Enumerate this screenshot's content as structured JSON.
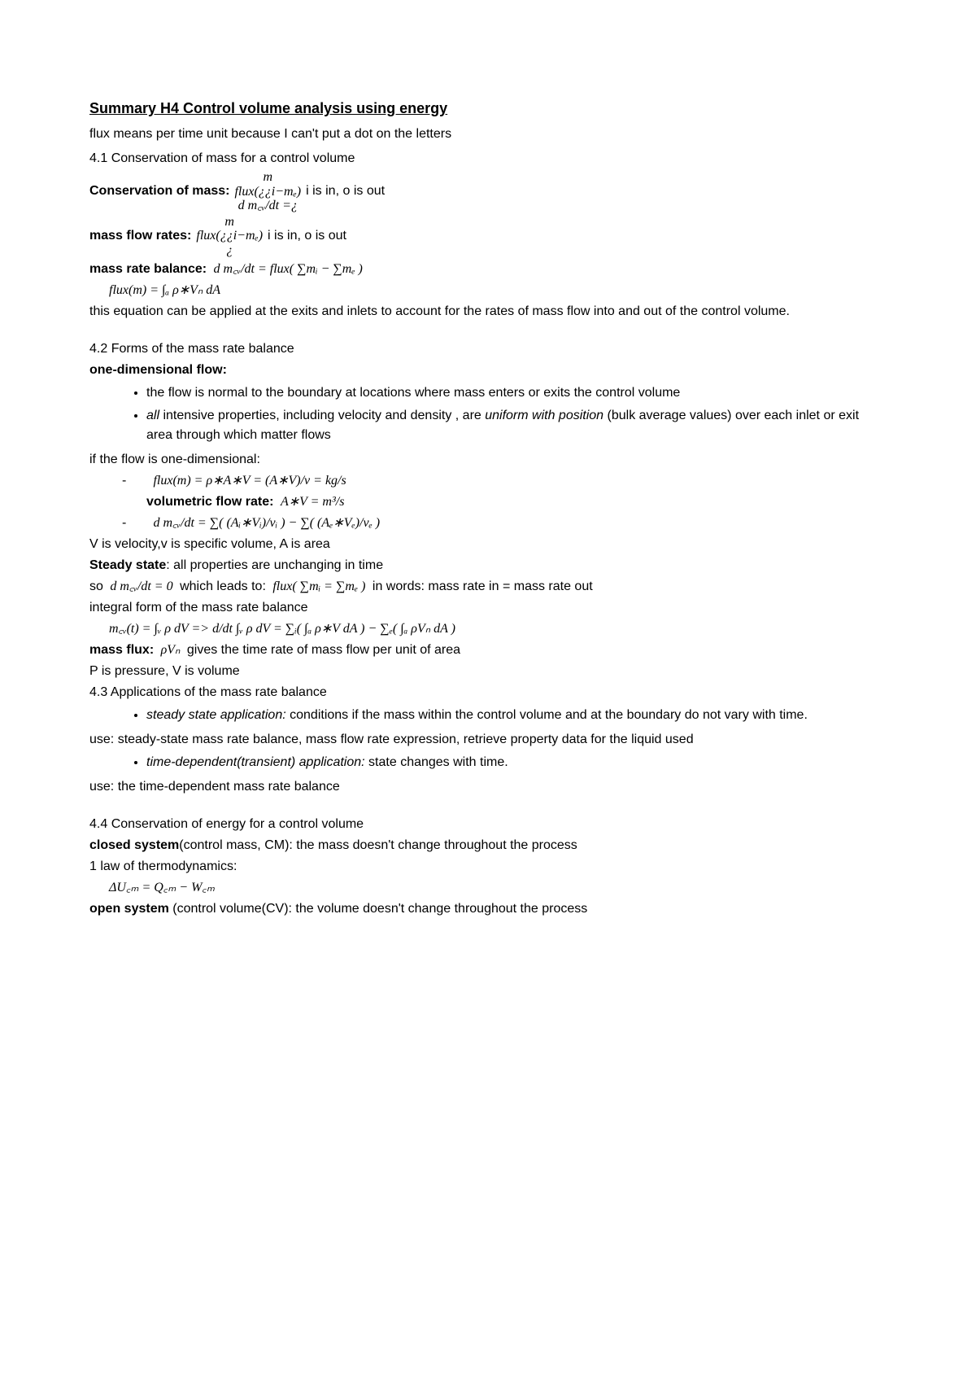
{
  "title": "Summary H4 Control volume analysis using energy",
  "subtitle": "flux means per time unit because I can't put a dot on the letters",
  "sections": {
    "s41": {
      "heading": "4.1 Conservation of mass for a control volume",
      "consLabel": "Conservation of mass:",
      "consNote": "i is in, o is out",
      "consStack": {
        "top": "m",
        "mid": "flux(¿¿i−mₑ)",
        "bot": "d m꜀ᵥ/dt =¿"
      },
      "massFlowLabel": "mass flow rates:",
      "massFlowNote": "i is in, o is out",
      "massFlowStack": {
        "top": "m",
        "mid": "flux(¿¿i−mₑ)",
        "bot": "¿"
      },
      "massRateLabel": "mass rate balance:",
      "massRateFormula": "d m꜀ᵥ/dt = flux( ∑mᵢ − ∑mₑ )",
      "fluxIntegral": "flux(m) = ∫ₐ ρ∗Vₙ dA",
      "note1": "this equation can be applied at the exits and inlets to account for the rates of mass flow into and out of the control volume."
    },
    "s42": {
      "heading": "4.2 Forms of the mass rate balance",
      "oneDimLabel": "one-dimensional flow:",
      "bullet1": "the flow is normal to the boundary at locations where mass enters or exits the control volume",
      "bullet2a": "all",
      "bullet2b": " intensive properties, including velocity and density , are ",
      "bullet2c": "uniform with position",
      "bullet2d": " (bulk average values) over each inlet or exit area through which matter flows",
      "ifOneDim": "if the flow is one-dimensional:",
      "dash1": "flux(m) = ρ∗A∗V = (A∗V)/v = kg/s",
      "volFlowLabel": "volumetric flow rate:",
      "volFlowFormula": "A∗V = m³/s",
      "dash2": "d m꜀ᵥ/dt = ∑( (Aᵢ∗Vᵢ)/vᵢ ) − ∑( (Aₑ∗Vₑ)/vₑ )",
      "vNote": "V is velocity,v is specific volume, A is area",
      "steadyLabel": "Steady state",
      "steadyDef": ": all properties are unchanging in time",
      "soLine1": "so   ",
      "soFormula1": "d m꜀ᵥ/dt = 0",
      "soLine2": "   which leads to:   ",
      "soFormula2": "flux( ∑mᵢ = ∑mₑ )",
      "soLine3": "   in words: mass rate in = mass rate out",
      "integralHeading": "integral form of the mass rate balance",
      "integralFormula": "m꜀ᵥ(t) = ∫ᵥ ρ dV    =>   d/dt    ∫ᵥ ρ dV = ∑ᵢ( ∫ₐ ρ∗V dA ) − ∑ₑ( ∫ₐ ρVₙ dA )",
      "massFluxLabel": "mass flux:",
      "massFluxFormula": "ρVₙ",
      "massFluxDef": "  gives the time rate of mass flow per unit of area",
      "pvNote": "P is pressure, V is volume"
    },
    "s43": {
      "heading": "4.3 Applications of the mass rate balance",
      "bullet1a": "steady state application:",
      "bullet1b": " conditions if the mass within the control volume and at the boundary do not vary with time.",
      "use1": "use: steady-state mass rate balance, mass flow rate expression, retrieve property data for the liquid used",
      "bullet2a": "time-dependent(transient) application:",
      "bullet2b": " state changes with time.",
      "use2": "use: the time-dependent mass rate balance"
    },
    "s44": {
      "heading": "4.4 Conservation of energy for a control volume",
      "closedLabel": "closed system",
      "closedDef": "(control mass, CM): the mass doesn't change throughout the process",
      "law1": "1 law of thermodynamics:",
      "law1Formula": "ΔU꜀ₘ = Q꜀ₘ − W꜀ₘ",
      "openLabel": "open system",
      "openDef": " (control volume(CV): the volume doesn't change throughout the process"
    }
  }
}
